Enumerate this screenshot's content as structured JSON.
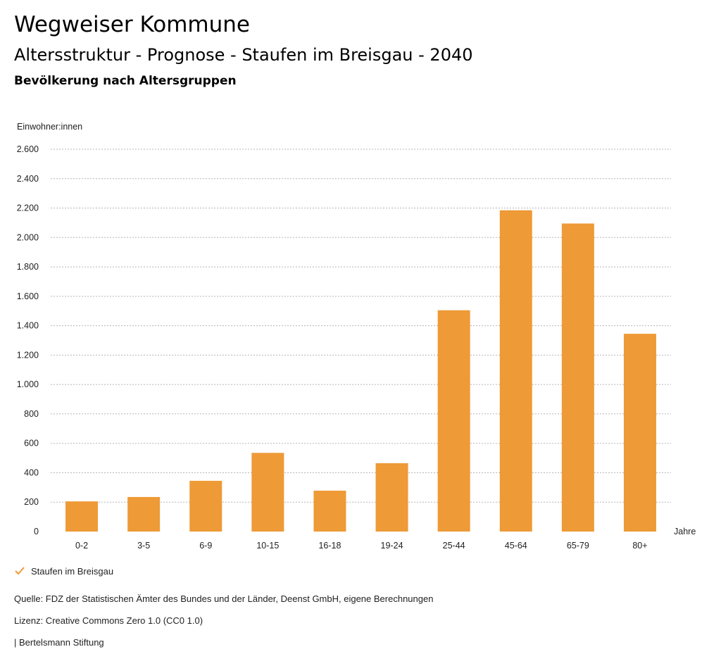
{
  "header": {
    "title": "Wegweiser Kommune",
    "subtitle": "Altersstruktur - Prognose - Staufen im Breisgau - 2040",
    "subtitle2": "Bevölkerung nach Altersgruppen"
  },
  "chart_data": {
    "type": "bar",
    "ylabel": "Einwohner:innen",
    "xlabel": "Jahre",
    "categories": [
      "0-2",
      "3-5",
      "6-9",
      "10-15",
      "16-18",
      "19-24",
      "25-44",
      "45-64",
      "65-79",
      "80+"
    ],
    "series": [
      {
        "name": "Staufen im Breisgau",
        "values": [
          205,
          235,
          345,
          535,
          278,
          465,
          1505,
          2185,
          2095,
          1345
        ],
        "color": "#ee9a37"
      }
    ],
    "ylim": [
      0,
      2600
    ],
    "yticks": [
      0,
      200,
      400,
      600,
      800,
      1000,
      1200,
      1400,
      1600,
      1800,
      2000,
      2200,
      2400,
      2600
    ],
    "ytick_labels": [
      "0",
      "200",
      "400",
      "600",
      "800",
      "1.000",
      "1.200",
      "1.400",
      "1.600",
      "1.800",
      "2.000",
      "2.200",
      "2.400",
      "2.600"
    ],
    "grid": true,
    "grid_style": "dotted",
    "legend": "bottom-left"
  },
  "legend": {
    "items": [
      {
        "label": "Staufen im Breisgau",
        "icon": "check-icon",
        "color": "#ee9a37"
      }
    ]
  },
  "footer": {
    "source": "Quelle: FDZ der Statistischen Ämter des Bundes und der Länder, Deenst GmbH, eigene Berechnungen",
    "license": "Lizenz: Creative Commons Zero 1.0 (CC0 1.0)",
    "credit": "| Bertelsmann Stiftung"
  }
}
